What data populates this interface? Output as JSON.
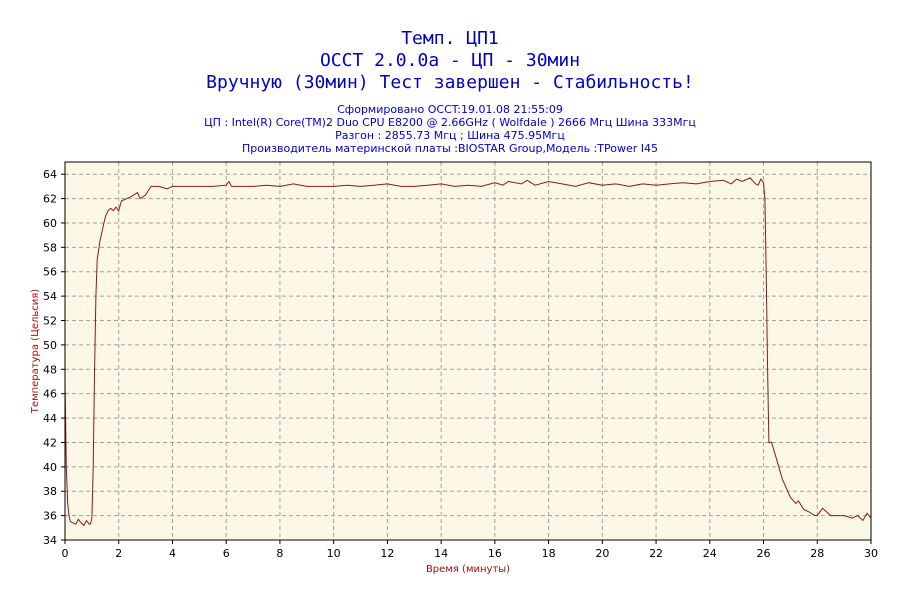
{
  "header": {
    "title1": "Темп. ЦП1",
    "title2": "OCCT 2.0.0a - ЦП - 30мин",
    "title3": "Вручную (30мин) Тест завершен - Стабильность!",
    "info1": "Сформировано OCCT:19.01.08 21:55:09",
    "info2": "ЦП : Intel(R) Core(TM)2 Duo CPU E8200 @ 2.66GHz ( Wolfdale ) 2666 Мгц Шина 333Мгц",
    "info3": "Разгон : 2855.73 Мгц ; Шина 475.95Мгц",
    "info4": "Производитель материнской платы :BIOSTAR Group,Модель :TPower I45"
  },
  "colors": {
    "plot_background": "#fdf8e6",
    "line": "#8b1a1a",
    "title_text": "#0000cc",
    "axis_label": "#a01010",
    "grid": "#a0a0a0"
  },
  "chart_data": {
    "type": "line",
    "xlabel": "Время (минуты)",
    "ylabel": "Температура (Цельсия)",
    "xlim": [
      0,
      30
    ],
    "ylim": [
      34,
      65
    ],
    "x_ticks": [
      0,
      2,
      4,
      6,
      8,
      10,
      12,
      14,
      16,
      18,
      20,
      22,
      24,
      26,
      28,
      30
    ],
    "y_ticks": [
      34,
      36,
      38,
      40,
      42,
      44,
      46,
      48,
      50,
      52,
      54,
      56,
      58,
      60,
      62,
      64
    ],
    "grid": true,
    "series": [
      {
        "x": [
          0,
          0.05,
          0.1,
          0.15,
          0.2,
          0.3,
          0.4,
          0.5,
          0.6,
          0.7,
          0.8,
          0.9,
          0.95,
          1.0,
          1.05,
          1.1,
          1.15,
          1.2,
          1.3,
          1.4,
          1.5,
          1.6,
          1.7,
          1.8,
          1.9,
          2.0,
          2.1,
          2.3,
          2.5,
          2.7,
          2.8,
          3.0,
          3.2,
          3.5,
          3.8,
          4.0,
          4.5,
          5.0,
          5.5,
          6.0,
          6.1,
          6.2,
          6.5,
          7.0,
          7.5,
          8.0,
          8.5,
          9.0,
          9.5,
          10.0,
          10.5,
          11.0,
          11.5,
          12.0,
          12.5,
          13.0,
          13.5,
          14.0,
          14.5,
          15.0,
          15.5,
          16.0,
          16.3,
          16.5,
          17.0,
          17.2,
          17.5,
          18.0,
          18.5,
          19.0,
          19.5,
          20.0,
          20.5,
          21.0,
          21.5,
          22.0,
          22.5,
          23.0,
          23.5,
          24.0,
          24.5,
          24.8,
          25.0,
          25.2,
          25.5,
          25.7,
          25.8,
          25.9,
          26.0,
          26.05,
          26.1,
          26.15,
          26.2,
          26.3,
          26.5,
          26.7,
          26.9,
          27.0,
          27.2,
          27.3,
          27.5,
          27.7,
          27.9,
          28.0,
          28.2,
          28.5,
          29.0,
          29.3,
          29.5,
          29.7,
          29.85,
          30.0
        ],
        "values": [
          47,
          40,
          37,
          36,
          35.5,
          35.4,
          35.3,
          35.7,
          35.4,
          35.2,
          35.6,
          35.3,
          35.3,
          35.8,
          40,
          48,
          54,
          57,
          58.5,
          59.5,
          60.5,
          61,
          61.2,
          61,
          61.3,
          61,
          61.8,
          62,
          62.2,
          62.5,
          62,
          62.3,
          63,
          63,
          62.8,
          63,
          63,
          63,
          63,
          63.1,
          63.4,
          63,
          63,
          63,
          63.1,
          63,
          63.2,
          63,
          63,
          63,
          63.1,
          63,
          63.1,
          63.2,
          63,
          63,
          63.1,
          63.2,
          63,
          63.1,
          63,
          63.3,
          63.1,
          63.4,
          63.2,
          63.5,
          63.1,
          63.4,
          63.2,
          63,
          63.3,
          63.1,
          63.2,
          63,
          63.2,
          63.1,
          63.2,
          63.3,
          63.2,
          63.4,
          63.5,
          63.2,
          63.6,
          63.4,
          63.7,
          63.2,
          63.1,
          63.6,
          63.3,
          62,
          56,
          48,
          42,
          42,
          40.5,
          39,
          38,
          37.5,
          37,
          37.2,
          36.5,
          36.3,
          36,
          36,
          36.6,
          36,
          36,
          35.8,
          36,
          35.6,
          36.2,
          35.8
        ]
      }
    ]
  }
}
